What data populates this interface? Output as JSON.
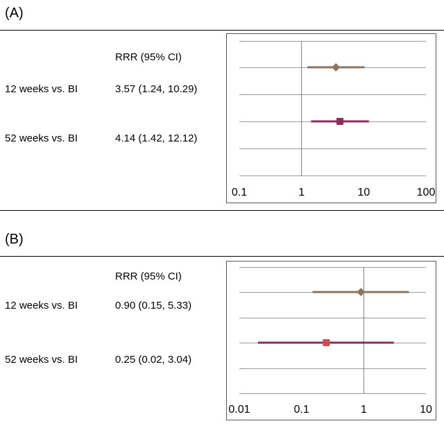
{
  "panels": [
    {
      "label": "(A)",
      "header": "RRR (95% CI)",
      "rows": [
        {
          "label": "12 weeks vs. BI",
          "ci_text": "3.57 (1.24, 10.29)"
        },
        {
          "label": "52 weeks vs. BI",
          "ci_text": "4.14 (1.42, 12.12)"
        }
      ]
    },
    {
      "label": "(B)",
      "header": "RRR (95% CI)",
      "rows": [
        {
          "label": "12 weeks vs. BI",
          "ci_text": "0.90 (0.15, 5.33)"
        },
        {
          "label": "52 weeks vs. BI",
          "ci_text": "0.25 (0.02, 3.04)"
        }
      ]
    }
  ],
  "chart_data": [
    {
      "type": "scatter",
      "title": "",
      "xscale": "log",
      "xlim": [
        0.1,
        100
      ],
      "xticks": [
        0.1,
        1,
        10,
        100
      ],
      "xtick_labels": [
        "0.1",
        "1",
        "10",
        "100"
      ],
      "reference_line": 1,
      "grid": true,
      "series": [
        {
          "point": 3.57,
          "lower": 1.24,
          "upper": 10.29,
          "marker": "diamond",
          "color": "#8b7560"
        },
        {
          "point": 4.14,
          "lower": 1.42,
          "upper": 12.12,
          "marker": "square",
          "color": "#8b2e5a"
        }
      ]
    },
    {
      "type": "scatter",
      "title": "",
      "xscale": "log",
      "xlim": [
        0.01,
        10
      ],
      "xticks": [
        0.01,
        0.1,
        1,
        10
      ],
      "xtick_labels": [
        "0.01",
        "0.1",
        "1",
        "10"
      ],
      "reference_line": 1,
      "grid": true,
      "series": [
        {
          "point": 0.9,
          "lower": 0.15,
          "upper": 5.33,
          "marker": "diamond",
          "color": "#8b7560"
        },
        {
          "point": 0.25,
          "lower": 0.02,
          "upper": 3.04,
          "marker": "square",
          "color": "#c9504f",
          "line_color": "#8b2e5a"
        }
      ]
    }
  ]
}
